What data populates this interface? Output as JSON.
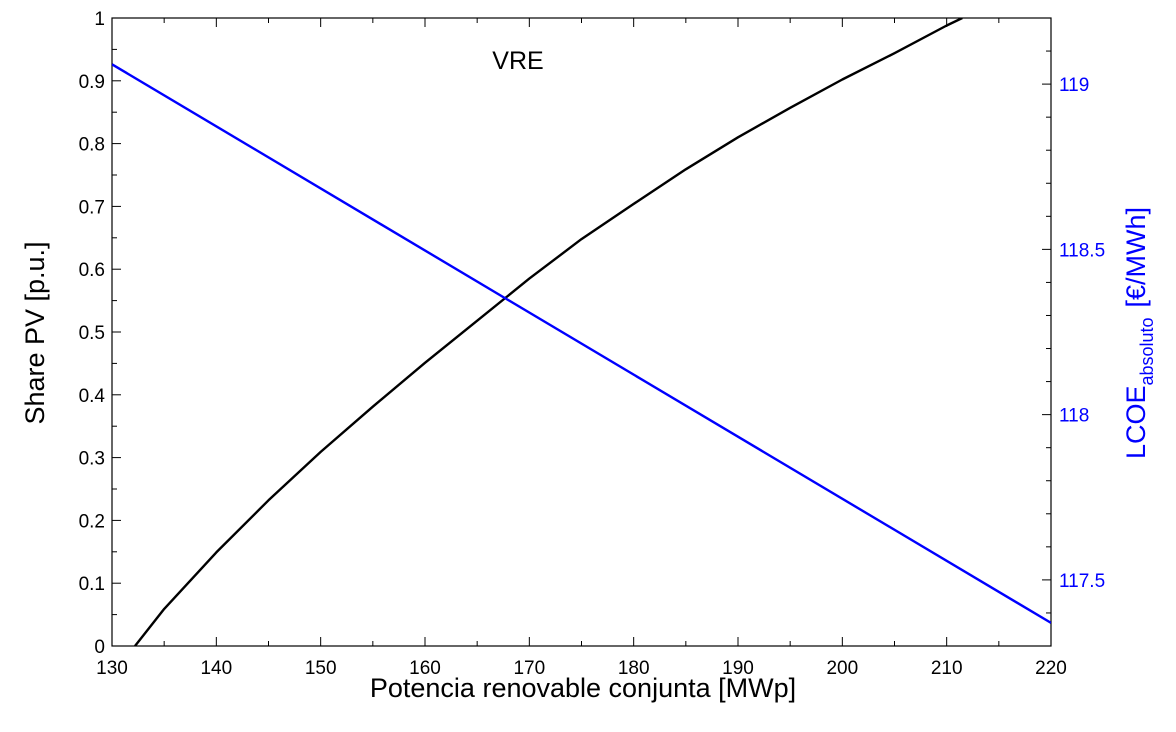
{
  "chart_data": {
    "type": "line",
    "annotation": "VRE",
    "xlabel": "Potencia renovable conjunta [MWp]",
    "ylabel_left": "Share PV [p.u.]",
    "ylabel_right_main": "LCOE",
    "ylabel_right_sub": "absoluto",
    "ylabel_right_unit": "[€/MWh]",
    "xlim": [
      130,
      220
    ],
    "ylim_left": [
      0,
      1
    ],
    "ylim_right": [
      117.3,
      119.2
    ],
    "grid": false,
    "x_ticks": [
      "130",
      "140",
      "150",
      "160",
      "170",
      "180",
      "190",
      "200",
      "210",
      "220"
    ],
    "y_left_ticks": [
      "0",
      "0.1",
      "0.2",
      "0.3",
      "0.4",
      "0.5",
      "0.6",
      "0.7",
      "0.8",
      "0.9",
      "1"
    ],
    "y_right_ticks": [
      "117.5",
      "118",
      "118.5",
      "119"
    ],
    "colors": {
      "share": "#000000",
      "lcoe": "#0000ff",
      "right_axis": "#0000ff"
    },
    "series": [
      {
        "axis": "left",
        "x": [
          132.2,
          135,
          140,
          145,
          150,
          155,
          160,
          165,
          170,
          175,
          180,
          185,
          190,
          195,
          200,
          205,
          210,
          211.5
        ],
        "values": [
          0,
          0.059,
          0.149,
          0.232,
          0.309,
          0.381,
          0.451,
          0.518,
          0.585,
          0.648,
          0.704,
          0.759,
          0.81,
          0.857,
          0.902,
          0.944,
          0.988,
          1.0
        ]
      },
      {
        "axis": "right",
        "x": [
          130,
          220
        ],
        "values": [
          119.06,
          117.37
        ]
      }
    ]
  }
}
